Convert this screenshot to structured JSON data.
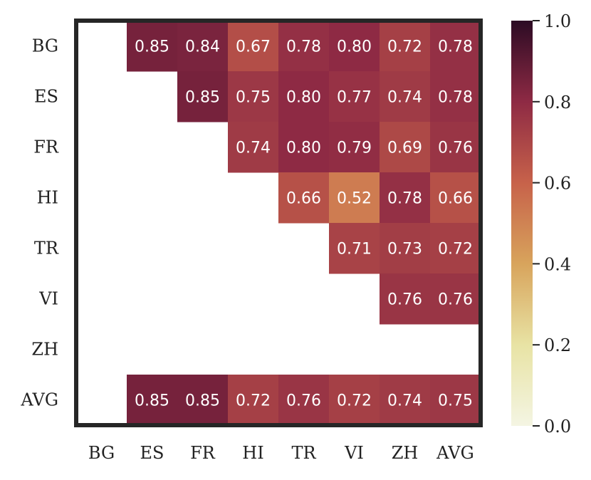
{
  "chart_data": {
    "type": "heatmap",
    "title": "",
    "xlabel": "",
    "ylabel": "",
    "x_categories": [
      "BG",
      "ES",
      "FR",
      "HI",
      "TR",
      "VI",
      "ZH",
      "AVG"
    ],
    "y_categories": [
      "BG",
      "ES",
      "FR",
      "HI",
      "TR",
      "VI",
      "ZH",
      "AVG"
    ],
    "values": [
      [
        null,
        0.85,
        0.84,
        0.67,
        0.78,
        0.8,
        0.72,
        0.78
      ],
      [
        null,
        null,
        0.85,
        0.75,
        0.8,
        0.77,
        0.74,
        0.78
      ],
      [
        null,
        null,
        null,
        0.74,
        0.8,
        0.79,
        0.69,
        0.76
      ],
      [
        null,
        null,
        null,
        null,
        0.66,
        0.52,
        0.78,
        0.66
      ],
      [
        null,
        null,
        null,
        null,
        null,
        0.71,
        0.73,
        0.72
      ],
      [
        null,
        null,
        null,
        null,
        null,
        null,
        0.76,
        0.76
      ],
      [
        null,
        null,
        null,
        null,
        null,
        null,
        null,
        null
      ],
      [
        null,
        0.85,
        0.85,
        0.72,
        0.76,
        0.72,
        0.74,
        0.75
      ]
    ],
    "value_format": "0.00",
    "colorbar": {
      "range": [
        0.0,
        1.0
      ],
      "ticks": [
        0.0,
        0.2,
        0.4,
        0.6,
        0.8,
        1.0
      ],
      "tick_labels": [
        "0.0",
        "0.2",
        "0.4",
        "0.6",
        "0.8",
        "1.0"
      ],
      "colors": [
        "#f4f5e3",
        "#e8e3a4",
        "#d8a45c",
        "#c7624a",
        "#8e2a44",
        "#2c0b24"
      ]
    },
    "frame_color": "#262626",
    "grid": false
  }
}
